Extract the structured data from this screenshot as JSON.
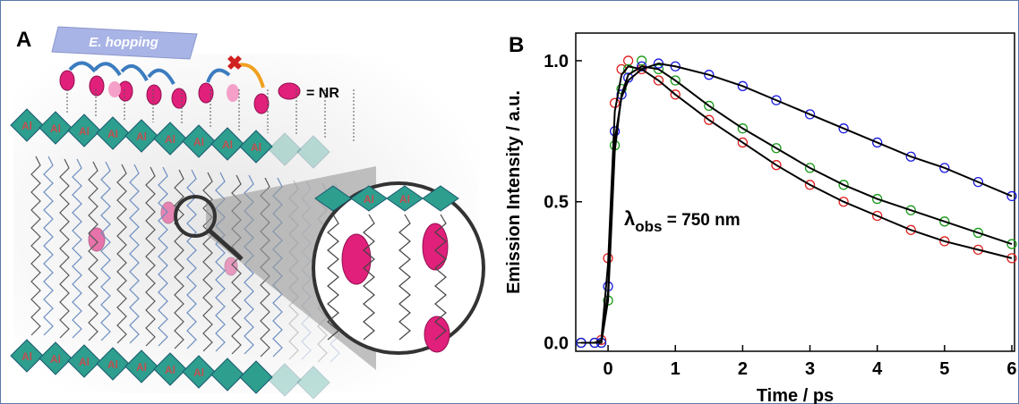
{
  "panel_a": {
    "label": "A",
    "hopping_label": "E. hopping",
    "legend_text": "= NR",
    "al_labels": [
      "Al",
      "Al",
      "Al",
      "Al",
      "Al",
      "Al",
      "Al",
      "Al",
      "Al",
      "Al",
      "Al",
      "Al",
      "Al",
      "Al",
      "Al",
      "Al",
      "Al",
      "Al"
    ]
  },
  "chart_data": {
    "type": "scatter",
    "panel_label": "B",
    "x_label": "Time / ps",
    "y_label": "Emission Intensity / a.u.",
    "annotation": {
      "symbol": "λ",
      "subscript": "obs",
      "text": " = 750 nm"
    },
    "x": [
      -0.4,
      -0.2,
      -0.1,
      0,
      0.1,
      0.2,
      0.3,
      0.5,
      0.75,
      1,
      1.5,
      2,
      2.5,
      3,
      3.5,
      4,
      4.5,
      5,
      5.5,
      6
    ],
    "series": [
      {
        "color": "#e02020",
        "values": [
          0,
          0,
          0.01,
          0.3,
          0.85,
          0.97,
          1.0,
          0.97,
          0.93,
          0.88,
          0.79,
          0.71,
          0.63,
          0.56,
          0.5,
          0.45,
          0.4,
          0.36,
          0.33,
          0.3
        ]
      },
      {
        "color": "#1a9a1a",
        "values": [
          0,
          0,
          0,
          0.15,
          0.7,
          0.9,
          0.97,
          1.0,
          0.97,
          0.93,
          0.84,
          0.76,
          0.69,
          0.62,
          0.56,
          0.51,
          0.47,
          0.43,
          0.39,
          0.35
        ]
      },
      {
        "color": "#1a1ae0",
        "values": [
          0,
          0,
          0,
          0.2,
          0.75,
          0.88,
          0.94,
          0.98,
          0.99,
          0.98,
          0.95,
          0.91,
          0.86,
          0.81,
          0.76,
          0.71,
          0.66,
          0.62,
          0.57,
          0.52
        ]
      }
    ],
    "fits": [
      {
        "color": "#000000",
        "values": [
          0,
          0,
          0.01,
          0.28,
          0.82,
          0.95,
          0.98,
          0.97,
          0.93,
          0.88,
          0.79,
          0.71,
          0.63,
          0.56,
          0.5,
          0.45,
          0.4,
          0.36,
          0.33,
          0.3
        ]
      },
      {
        "color": "#000000",
        "values": [
          0,
          0,
          0,
          0.15,
          0.68,
          0.88,
          0.95,
          0.98,
          0.97,
          0.93,
          0.84,
          0.76,
          0.69,
          0.62,
          0.56,
          0.51,
          0.47,
          0.43,
          0.39,
          0.35
        ]
      },
      {
        "color": "#000000",
        "values": [
          0,
          0,
          0,
          0.18,
          0.72,
          0.87,
          0.93,
          0.97,
          0.99,
          0.98,
          0.95,
          0.91,
          0.86,
          0.81,
          0.76,
          0.71,
          0.66,
          0.62,
          0.57,
          0.52
        ]
      }
    ],
    "xlim": [
      -0.48,
      6.04
    ],
    "ylim": [
      -0.03,
      1.098
    ],
    "xticks": [
      0,
      1,
      2,
      3,
      4,
      5,
      6
    ],
    "yticks": [
      {
        "value": 0,
        "label": "0.0"
      },
      {
        "value": 0.5,
        "label": "0.5"
      },
      {
        "value": 1,
        "label": "1.0"
      }
    ]
  }
}
